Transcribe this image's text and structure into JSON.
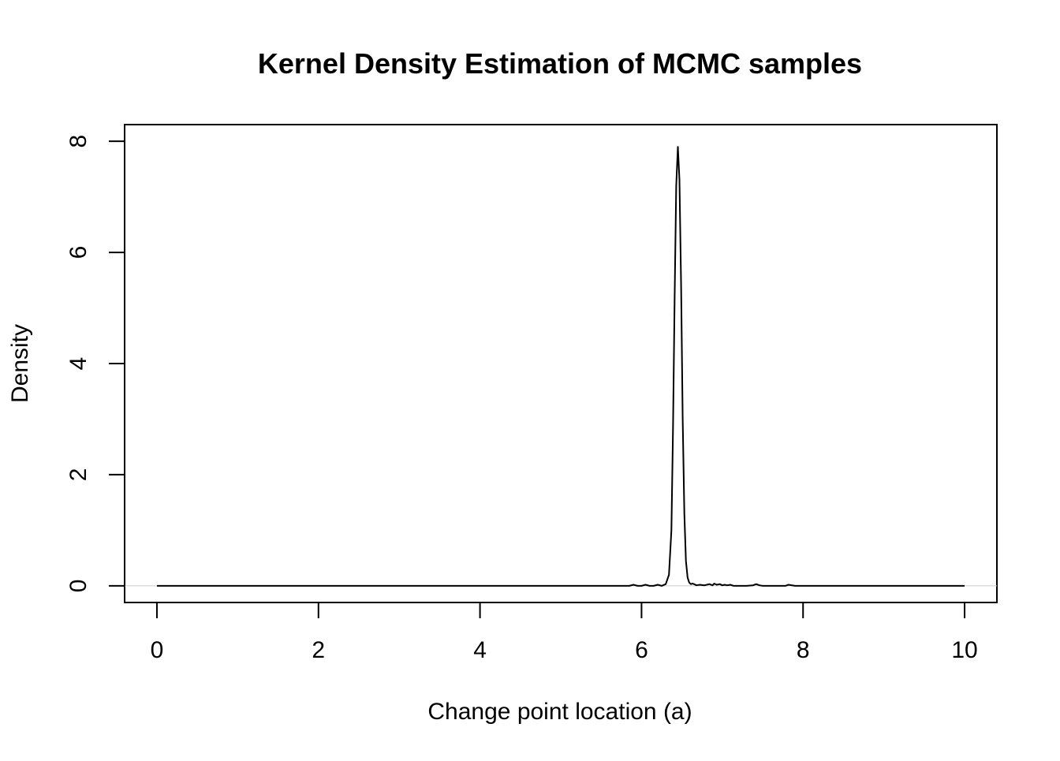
{
  "chart_data": {
    "type": "line",
    "title": "Kernel Density Estimation of MCMC samples",
    "xlabel": "Change point location (a)",
    "ylabel": "Density",
    "xlim": [
      -0.4,
      10.4
    ],
    "ylim": [
      -0.3,
      8.3
    ],
    "x_ticks": [
      0,
      2,
      4,
      6,
      8,
      10
    ],
    "y_ticks": [
      0,
      2,
      4,
      6,
      8
    ],
    "x_tick_labels": [
      "0",
      "2",
      "4",
      "6",
      "8",
      "10"
    ],
    "y_tick_labels": [
      "0",
      "2",
      "4",
      "6",
      "8"
    ],
    "baseline_y": 0,
    "baseline_color": "#cccccc",
    "line_color": "#000000",
    "grid": false,
    "series": [
      {
        "x": [
          0,
          1.0,
          2.0,
          3.0,
          4.0,
          5.0,
          5.85,
          5.9,
          5.95,
          6.0,
          6.05,
          6.1,
          6.15,
          6.2,
          6.25,
          6.3,
          6.34,
          6.37,
          6.39,
          6.41,
          6.43,
          6.45,
          6.47,
          6.49,
          6.51,
          6.53,
          6.55,
          6.57,
          6.59,
          6.61,
          6.63,
          6.65,
          6.68,
          6.72,
          6.78,
          6.84,
          6.88,
          6.9,
          6.93,
          6.97,
          7.0,
          7.03,
          7.06,
          7.1,
          7.14,
          7.2,
          7.3,
          7.38,
          7.42,
          7.46,
          7.5,
          7.6,
          7.7,
          7.78,
          7.82,
          7.9,
          8.5,
          9.0,
          10.0
        ],
        "y": [
          0,
          0,
          0,
          0,
          0,
          0,
          0,
          0.02,
          0,
          0,
          0.02,
          0,
          0,
          0.02,
          0,
          0.03,
          0.2,
          1.0,
          2.8,
          5.2,
          7.2,
          7.9,
          7.3,
          5.4,
          3.0,
          1.3,
          0.45,
          0.15,
          0.06,
          0.03,
          0.04,
          0.03,
          0.01,
          0.02,
          0.01,
          0.03,
          0.01,
          0.04,
          0.02,
          0.03,
          0.01,
          0.02,
          0.01,
          0.02,
          0,
          0,
          0,
          0.01,
          0.03,
          0.01,
          0,
          0,
          0,
          0,
          0.02,
          0,
          0,
          0,
          0
        ]
      }
    ]
  }
}
